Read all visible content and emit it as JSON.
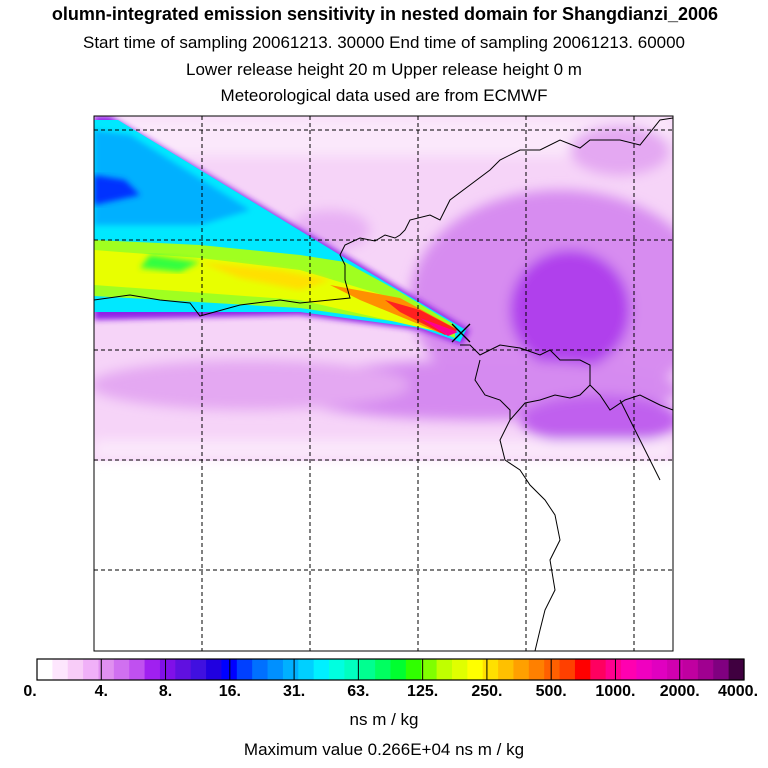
{
  "header": {
    "title": "olumn-integrated emission sensitivity in nested domain for Shangdianzi_2006",
    "sampling_line": "Start time of sampling 20061213. 30000     End time of sampling 20061213. 60000",
    "release_line": "Lower release height   20 m          Upper release height    0 m",
    "met_line": "Meteorological data used are from ECMWF"
  },
  "map": {
    "station": "Shangdianzi",
    "station_marker_icon": "x-marker-icon",
    "grid_lines": "dashed"
  },
  "colorbar": {
    "labels": [
      "0.",
      "4.",
      "8.",
      "16.",
      "31.",
      "63.",
      "125.",
      "250.",
      "500.",
      "1000.",
      "2000.",
      "4000."
    ],
    "colors": [
      "#ffffff",
      "#fde6fd",
      "#f8ccf8",
      "#f0b0f8",
      "#e090f0",
      "#d070f0",
      "#c050f0",
      "#a020f0",
      "#8010e8",
      "#6010e0",
      "#4010e0",
      "#2000e0",
      "#0000ff",
      "#0040ff",
      "#0070ff",
      "#0090ff",
      "#00b0ff",
      "#00d0ff",
      "#00f0ff",
      "#00ffe0",
      "#00ffc0",
      "#00ff90",
      "#00ff60",
      "#00ff30",
      "#30ff00",
      "#80ff00",
      "#c0ff00",
      "#e0ff00",
      "#ffff00",
      "#ffe000",
      "#ffc000",
      "#ffa000",
      "#ff8000",
      "#ff6000",
      "#ff4000",
      "#ff0000",
      "#ff0060",
      "#ff0090",
      "#ff00b0",
      "#f000c0",
      "#e000c0",
      "#d000b0",
      "#c000a0",
      "#a00090",
      "#800080",
      "#400040"
    ],
    "units": "ns m / kg",
    "maximum_line": "Maximum value  0.266E+04 ns m / kg"
  }
}
